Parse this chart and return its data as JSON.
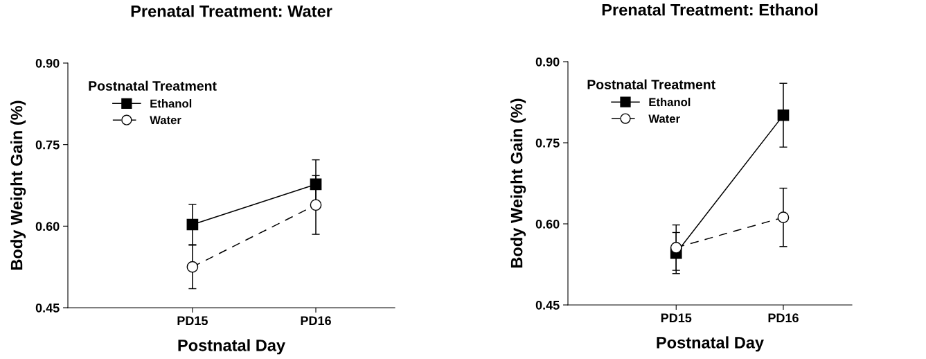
{
  "chart_data": [
    {
      "type": "line",
      "title": "Prenatal Treatment: Water",
      "xlabel": "Postnatal Day",
      "ylabel": "Body Weight Gain (%)",
      "categories": [
        "PD15",
        "PD16"
      ],
      "ylim": [
        0.45,
        0.9
      ],
      "yticks": [
        {
          "value": 0.45,
          "label": "0.45"
        },
        {
          "value": 0.6,
          "label": "0.60"
        },
        {
          "value": 0.75,
          "label": "0.75"
        },
        {
          "value": 0.9,
          "label": "0.90"
        }
      ],
      "grid": false,
      "legend": "top left",
      "legend_title": "Postnatal Treatment",
      "series": [
        {
          "name": "Ethanol",
          "color": "#000000",
          "values": [
            0.603,
            0.677
          ],
          "errors": [
            0.037,
            0.045
          ],
          "marker": "square",
          "line_style": "solid"
        },
        {
          "name": "Water",
          "color": "#000000",
          "values": [
            0.525,
            0.639
          ],
          "errors": [
            0.04,
            0.054
          ],
          "marker": "circle",
          "line_style": "dashed"
        }
      ]
    },
    {
      "type": "line",
      "title": "Prenatal Treatment: Ethanol",
      "xlabel": "Postnatal Day",
      "ylabel": "Body Weight Gain (%)",
      "categories": [
        "PD15",
        "PD16"
      ],
      "ylim": [
        0.45,
        0.9
      ],
      "yticks": [
        {
          "value": 0.45,
          "label": "0.45"
        },
        {
          "value": 0.6,
          "label": "0.60"
        },
        {
          "value": 0.75,
          "label": "0.75"
        },
        {
          "value": 0.9,
          "label": "0.90"
        }
      ],
      "grid": false,
      "legend": "top left",
      "legend_title": "Postnatal Treatment",
      "series": [
        {
          "name": "Ethanol",
          "color": "#000000",
          "values": [
            0.546,
            0.801
          ],
          "errors": [
            0.038,
            0.059
          ],
          "marker": "square",
          "line_style": "solid"
        },
        {
          "name": "Water",
          "color": "#000000",
          "values": [
            0.556,
            0.612
          ],
          "errors": [
            0.042,
            0.054
          ],
          "marker": "circle",
          "line_style": "dashed"
        }
      ]
    }
  ]
}
